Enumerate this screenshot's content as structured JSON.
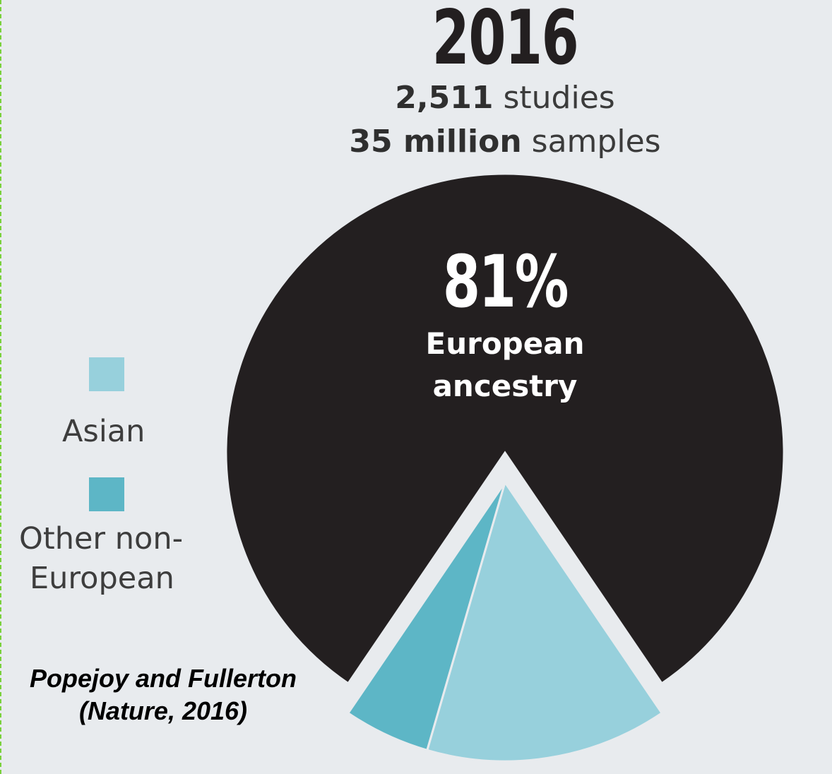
{
  "chart_data": {
    "type": "pie",
    "title": "2016",
    "subtitle_lines": [
      {
        "bold": "2,511",
        "rest": " studies"
      },
      {
        "bold": "35 million",
        "rest": " samples"
      }
    ],
    "slices": [
      {
        "name": "European ancestry",
        "value": 81,
        "color": "#231f20"
      },
      {
        "name": "Asian",
        "value": 14,
        "color": "#97d0dc"
      },
      {
        "name": "Other non-European",
        "value": 5,
        "color": "#5db6c6"
      }
    ],
    "highlight": {
      "value_label": "81%",
      "label_lines": [
        "European",
        "ancestry"
      ]
    },
    "legend": [
      {
        "label_lines": [
          "Asian"
        ],
        "color": "#97d0dc"
      },
      {
        "label_lines": [
          "Other non-",
          "European"
        ],
        "color": "#5db6c6"
      }
    ]
  },
  "source": {
    "lines": [
      "Popejoy and Fullerton",
      "(Nature, 2016)"
    ]
  },
  "colors": {
    "background": "#e8ebee",
    "separator": "#e8ebee"
  }
}
